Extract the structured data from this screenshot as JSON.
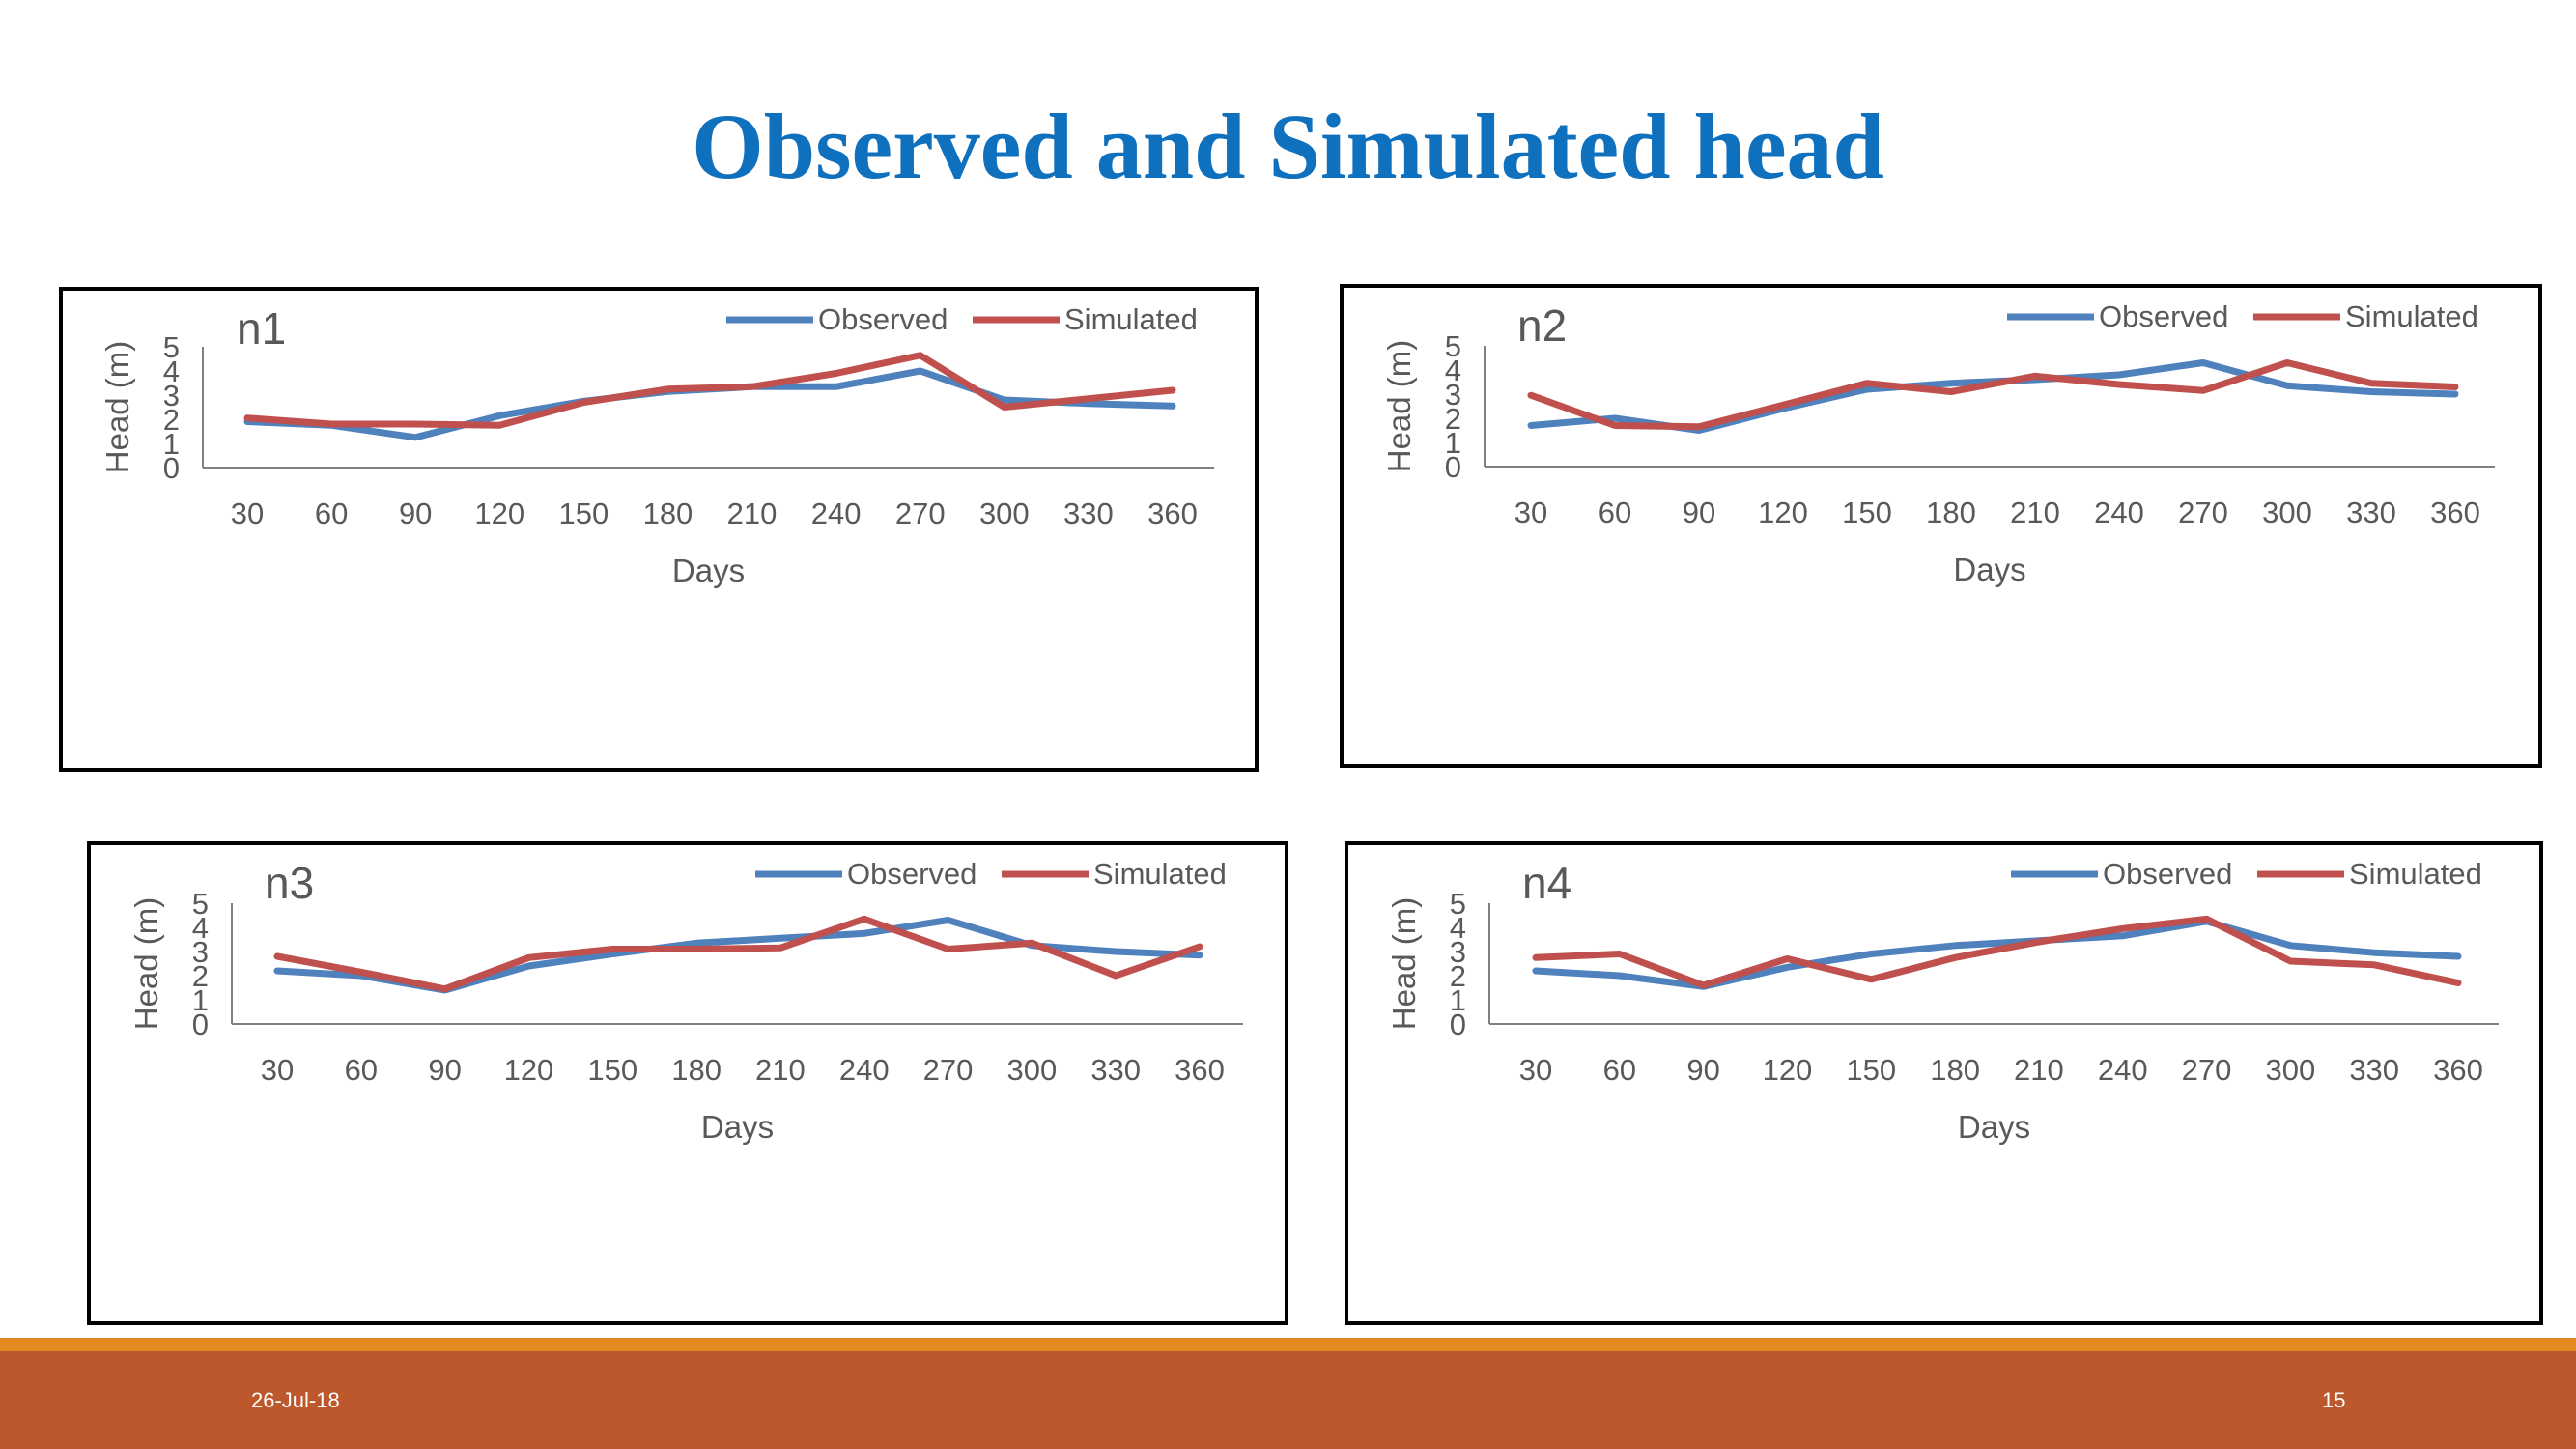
{
  "slide": {
    "title": "Observed and Simulated head",
    "date": "26-Jul-18",
    "page_number": "15"
  },
  "colors": {
    "title": "#0F70BE",
    "observed": "#4F81BD",
    "simulated": "#C0504D",
    "footer_bar": "#BC582B",
    "footer_stripe": "#E28A1F",
    "axis_text": "#595959"
  },
  "chart_data": [
    {
      "type": "line",
      "title": "n1",
      "xlabel": "Days",
      "ylabel": "Head (m)",
      "categories": [
        "30",
        "60",
        "90",
        "120",
        "150",
        "180",
        "210",
        "240",
        "270",
        "300",
        "330",
        "360"
      ],
      "yticks": [
        "0",
        "1",
        "2",
        "3",
        "4",
        "5"
      ],
      "ylim": [
        0,
        5
      ],
      "grid": false,
      "legend": "top-right",
      "series": [
        {
          "name": "Observed",
          "values": [
            1.9,
            1.75,
            1.25,
            2.15,
            2.75,
            3.15,
            3.35,
            3.35,
            4.0,
            2.8,
            2.65,
            2.55
          ]
        },
        {
          "name": "Simulated",
          "values": [
            2.05,
            1.8,
            1.8,
            1.75,
            2.7,
            3.25,
            3.35,
            3.9,
            4.65,
            2.5,
            2.85,
            3.2
          ]
        }
      ]
    },
    {
      "type": "line",
      "title": "n2",
      "xlabel": "Days",
      "ylabel": "Head (m)",
      "categories": [
        "30",
        "60",
        "90",
        "120",
        "150",
        "180",
        "210",
        "240",
        "270",
        "300",
        "330",
        "360"
      ],
      "yticks": [
        "0",
        "1",
        "2",
        "3",
        "4",
        "5"
      ],
      "ylim": [
        0,
        5
      ],
      "grid": false,
      "legend": "top-right",
      "series": [
        {
          "name": "Observed",
          "values": [
            1.7,
            2.0,
            1.5,
            2.4,
            3.2,
            3.45,
            3.6,
            3.8,
            4.3,
            3.35,
            3.1,
            3.0
          ]
        },
        {
          "name": "Simulated",
          "values": [
            2.95,
            1.7,
            1.65,
            2.55,
            3.45,
            3.1,
            3.75,
            3.4,
            3.15,
            4.3,
            3.45,
            3.3
          ]
        }
      ]
    },
    {
      "type": "line",
      "title": "n3",
      "xlabel": "Days",
      "ylabel": "Head (m)",
      "categories": [
        "30",
        "60",
        "90",
        "120",
        "150",
        "180",
        "210",
        "240",
        "270",
        "300",
        "330",
        "360"
      ],
      "yticks": [
        "0",
        "1",
        "2",
        "3",
        "4",
        "5"
      ],
      "ylim": [
        0,
        5
      ],
      "grid": false,
      "legend": "top-right",
      "series": [
        {
          "name": "Observed",
          "values": [
            2.2,
            2.0,
            1.4,
            2.4,
            2.9,
            3.35,
            3.55,
            3.75,
            4.3,
            3.25,
            3.0,
            2.85
          ]
        },
        {
          "name": "Simulated",
          "values": [
            2.8,
            2.15,
            1.45,
            2.75,
            3.1,
            3.1,
            3.15,
            4.35,
            3.1,
            3.35,
            2.0,
            3.2
          ]
        }
      ]
    },
    {
      "type": "line",
      "title": "n4",
      "xlabel": "Days",
      "ylabel": "Head (m)",
      "categories": [
        "30",
        "60",
        "90",
        "120",
        "150",
        "180",
        "210",
        "240",
        "270",
        "300",
        "330",
        "360"
      ],
      "yticks": [
        "0",
        "1",
        "2",
        "3",
        "4",
        "5"
      ],
      "ylim": [
        0,
        5
      ],
      "grid": false,
      "legend": "top-right",
      "series": [
        {
          "name": "Observed",
          "values": [
            2.2,
            2.0,
            1.55,
            2.35,
            2.9,
            3.25,
            3.45,
            3.65,
            4.25,
            3.25,
            2.95,
            2.8
          ]
        },
        {
          "name": "Simulated",
          "values": [
            2.75,
            2.9,
            1.6,
            2.7,
            1.85,
            2.75,
            3.4,
            3.95,
            4.35,
            2.6,
            2.45,
            1.7
          ]
        }
      ]
    }
  ]
}
